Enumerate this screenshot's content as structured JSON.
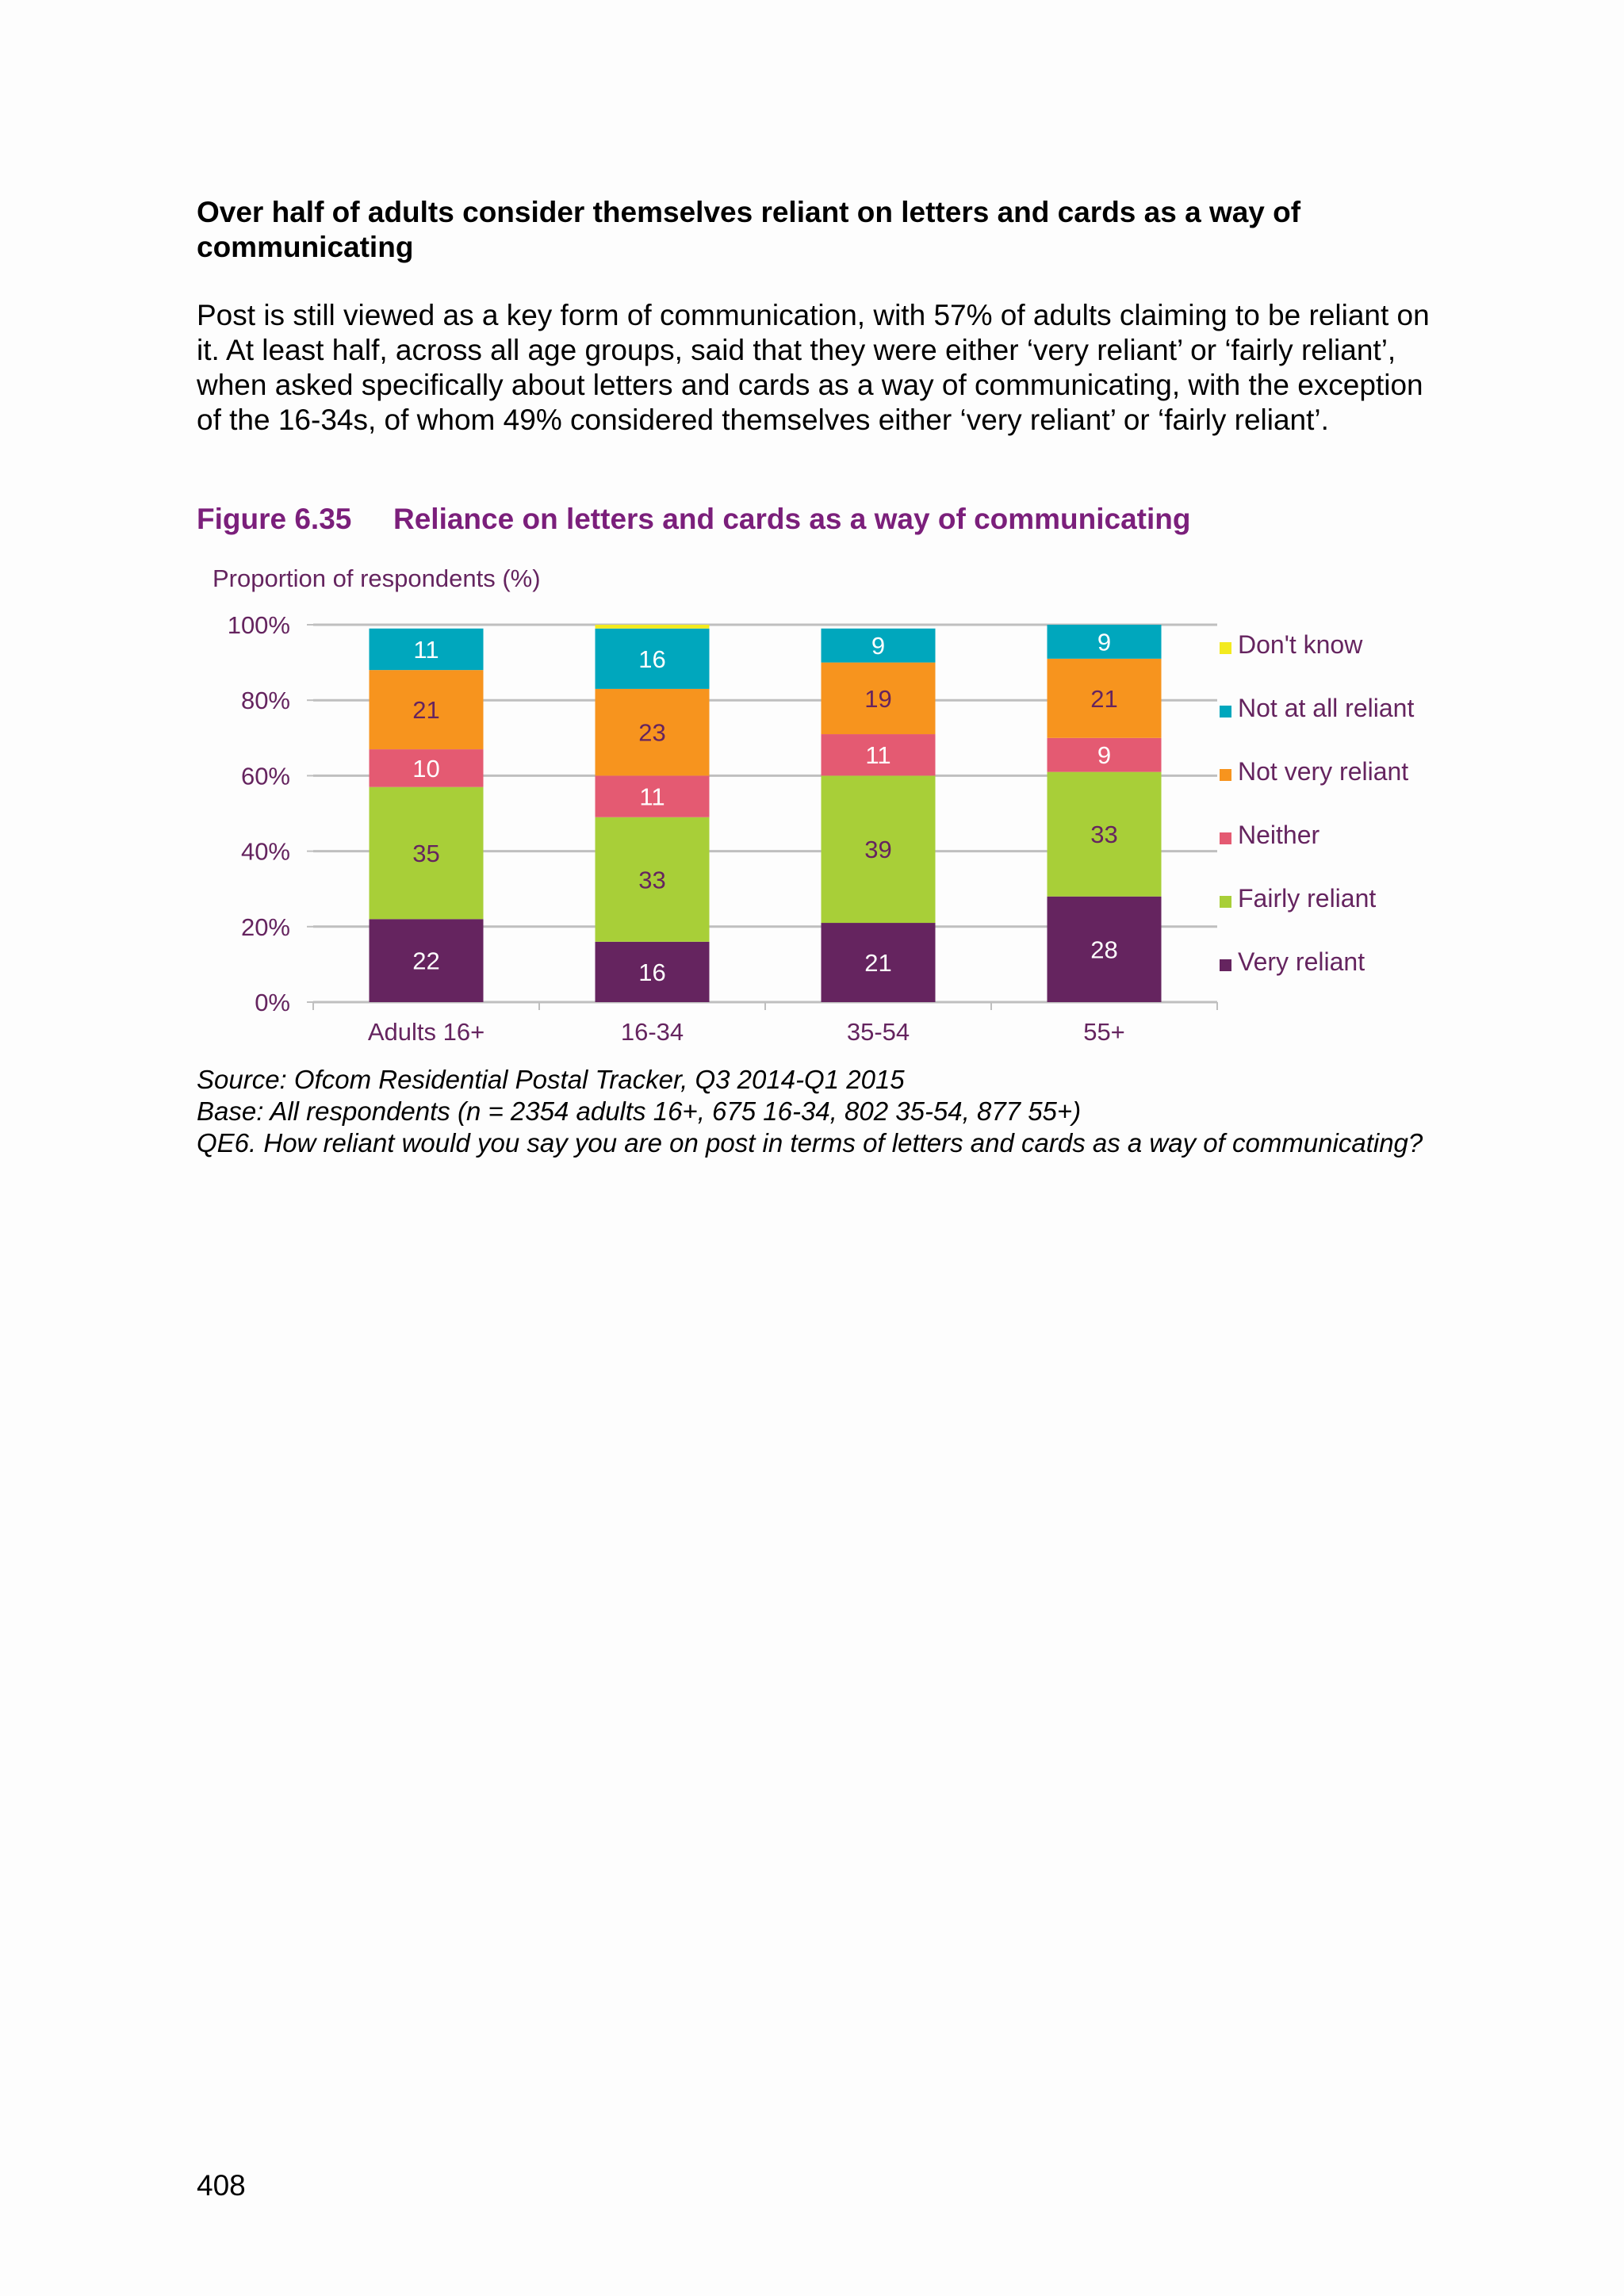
{
  "heading": "Over half of adults consider themselves reliant on letters and cards as a way of communicating",
  "paragraph": "Post is still viewed as a key form of communication, with 57% of adults claiming to be reliant on it. At least half, across all age groups, said that they were either ‘very reliant’ or ‘fairly reliant’, when asked specifically about letters and cards as a way of communicating, with the exception of the 16-34s, of whom 49% considered themselves either ‘very reliant’ or ‘fairly reliant’.",
  "figure": {
    "number": "Figure 6.35",
    "title": "Reliance on letters and cards as a way of communicating"
  },
  "chart_data": {
    "type": "bar",
    "stacked": true,
    "ylabel": "Proportion of respondents (%)",
    "ylim": [
      0,
      100
    ],
    "yticks": [
      "0%",
      "20%",
      "40%",
      "60%",
      "80%",
      "100%"
    ],
    "categories": [
      "Adults 16+",
      "16-34",
      "35-54",
      "55+"
    ],
    "series": [
      {
        "name": "Very reliant",
        "color": "#65245f",
        "label_color": "#ffffff",
        "values": [
          22,
          16,
          21,
          28
        ],
        "labels": [
          "22",
          "16",
          "21",
          "28"
        ]
      },
      {
        "name": "Fairly reliant",
        "color": "#a8cf38",
        "label_color": "#65245f",
        "values": [
          35,
          33,
          39,
          33
        ],
        "labels": [
          "35",
          "33",
          "39",
          "33"
        ]
      },
      {
        "name": "Neither",
        "color": "#e45a72",
        "label_color": "#ffffff",
        "values": [
          10,
          11,
          11,
          9
        ],
        "labels": [
          "10",
          "11",
          "11",
          "9"
        ]
      },
      {
        "name": "Not very reliant",
        "color": "#f7941e",
        "label_color": "#65245f",
        "values": [
          21,
          23,
          19,
          21
        ],
        "labels": [
          "21",
          "23",
          "19",
          "21"
        ]
      },
      {
        "name": "Not at all reliant",
        "color": "#00a7bd",
        "label_color": "#ffffff",
        "values": [
          11,
          16,
          9,
          9
        ],
        "labels": [
          "11",
          "16",
          "9",
          "9"
        ]
      },
      {
        "name": "Don't know",
        "color": "#f3ea1f",
        "label_color": "#65245f",
        "values": [
          0,
          1,
          0,
          0
        ],
        "labels": [
          "",
          "",
          "",
          ""
        ]
      }
    ],
    "legend_position": "right",
    "grid": true
  },
  "notes": {
    "source": "Source: Ofcom Residential Postal Tracker, Q3 2014-Q1 2015",
    "base": "Base: All respondents (n = 2354 adults 16+, 675 16-34, 802 35-54, 877 55+)",
    "question": "QE6. How reliant would you say you are on post in terms of letters and cards as a way of communicating?"
  },
  "page_number": "408"
}
